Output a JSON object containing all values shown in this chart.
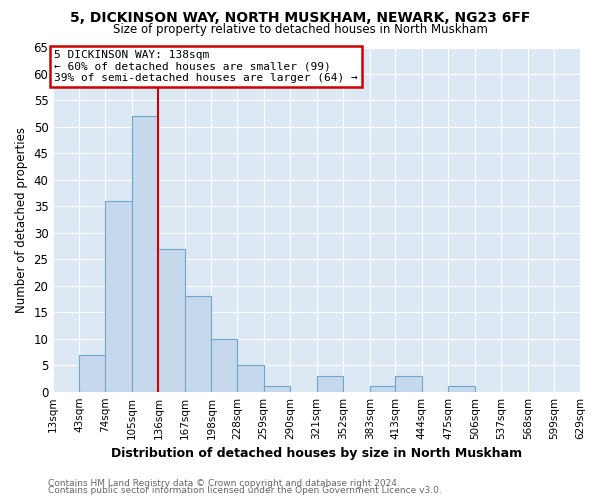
{
  "title": "5, DICKINSON WAY, NORTH MUSKHAM, NEWARK, NG23 6FF",
  "subtitle": "Size of property relative to detached houses in North Muskham",
  "xlabel": "Distribution of detached houses by size in North Muskham",
  "ylabel": "Number of detached properties",
  "bin_edges": [
    13,
    43,
    74,
    105,
    136,
    167,
    198,
    228,
    259,
    290,
    321,
    352,
    383,
    413,
    444,
    475,
    506,
    537,
    568,
    599,
    629
  ],
  "bar_values": [
    0,
    7,
    36,
    52,
    27,
    18,
    10,
    5,
    1,
    0,
    3,
    0,
    1,
    3,
    0,
    1,
    0,
    0,
    0,
    0
  ],
  "bar_color": "#c5d8ec",
  "bar_edge_color": "#6ea6cc",
  "vline_x": 136,
  "vline_color": "#cc0000",
  "ylim": [
    0,
    65
  ],
  "yticks": [
    0,
    5,
    10,
    15,
    20,
    25,
    30,
    35,
    40,
    45,
    50,
    55,
    60,
    65
  ],
  "annotation_title": "5 DICKINSON WAY: 138sqm",
  "annotation_line1": "← 60% of detached houses are smaller (99)",
  "annotation_line2": "39% of semi-detached houses are larger (64) →",
  "annotation_box_color": "#cc0000",
  "footer1": "Contains HM Land Registry data © Crown copyright and database right 2024.",
  "footer2": "Contains public sector information licensed under the Open Government Licence v3.0.",
  "fig_bg_color": "#ffffff",
  "plot_bg_color": "#dde8f5",
  "grid_color": "#ffffff"
}
